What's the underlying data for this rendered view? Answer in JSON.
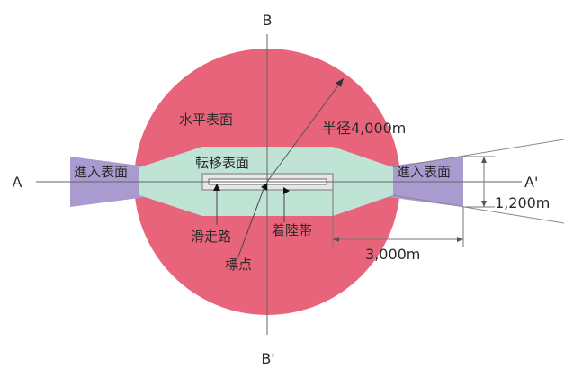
{
  "labels": {
    "axis_b_top": "B",
    "axis_b_bottom": "B'",
    "axis_a_left": "A",
    "axis_a_right": "A'",
    "horizontal_surface": "水平表面",
    "transitional_surface": "転移表面",
    "approach_surface_left": "進入表面",
    "approach_surface_right": "進入表面",
    "radius": "半径4,000m",
    "width": "1,200m",
    "length": "3,000m",
    "runway": "滑走路",
    "reference_point": "標点",
    "runway_strip": "着陸帯"
  },
  "colors": {
    "horizontal_surface": "#e8647a",
    "transitional_surface": "#bfe4d6",
    "approach_surface": "#a99ad0",
    "runway_strip": "#e6e6e6",
    "lines": "#666666"
  }
}
